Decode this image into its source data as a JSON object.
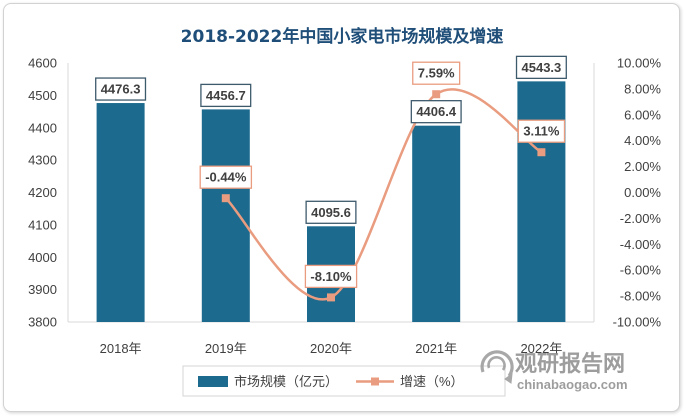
{
  "colors": {
    "title": "#1f4e79",
    "axis_text": "#404040",
    "axis_line": "#d9d9d9"
  },
  "chart_data": {
    "type": "bar",
    "title": "2018-2022年中国小家电市场规模及增速",
    "categories": [
      "2018年",
      "2019年",
      "2020年",
      "2021年",
      "2022年"
    ],
    "series": [
      {
        "name": "市场规模（亿元）",
        "type": "bar",
        "axis": "left",
        "color": "#1c6a8d",
        "label_border": "#3d5a6c",
        "values": [
          4476.3,
          4456.7,
          4095.6,
          4406.4,
          4543.3
        ],
        "labels": [
          "4476.3",
          "4456.7",
          "4095.6",
          "4406.4",
          "4543.3"
        ]
      },
      {
        "name": "增速（%）",
        "type": "line",
        "smooth": true,
        "marker": "square",
        "axis": "right",
        "color": "#e99c7f",
        "label_border": "#e99c7f",
        "values": [
          null,
          -0.44,
          -8.1,
          7.59,
          3.11
        ],
        "labels": [
          null,
          "-0.44%",
          "-8.10%",
          "7.59%",
          "3.11%"
        ]
      }
    ],
    "y_left": {
      "min": 3800,
      "max": 4600,
      "ticks": [
        "3800",
        "3900",
        "4000",
        "4100",
        "4200",
        "4300",
        "4400",
        "4500",
        "4600"
      ]
    },
    "y_right": {
      "min": -10,
      "max": 10,
      "ticks": [
        "-10.00%",
        "-8.00%",
        "-6.00%",
        "-4.00%",
        "-2.00%",
        "0.00%",
        "2.00%",
        "4.00%",
        "6.00%",
        "8.00%",
        "10.00%"
      ]
    },
    "grid": false,
    "legend": "bottom"
  },
  "watermark": {
    "brand": "观研报告网",
    "url": "chinabaogao.com",
    "logo_icon": "swirl-logo-icon",
    "color": "#8c8c8c"
  }
}
